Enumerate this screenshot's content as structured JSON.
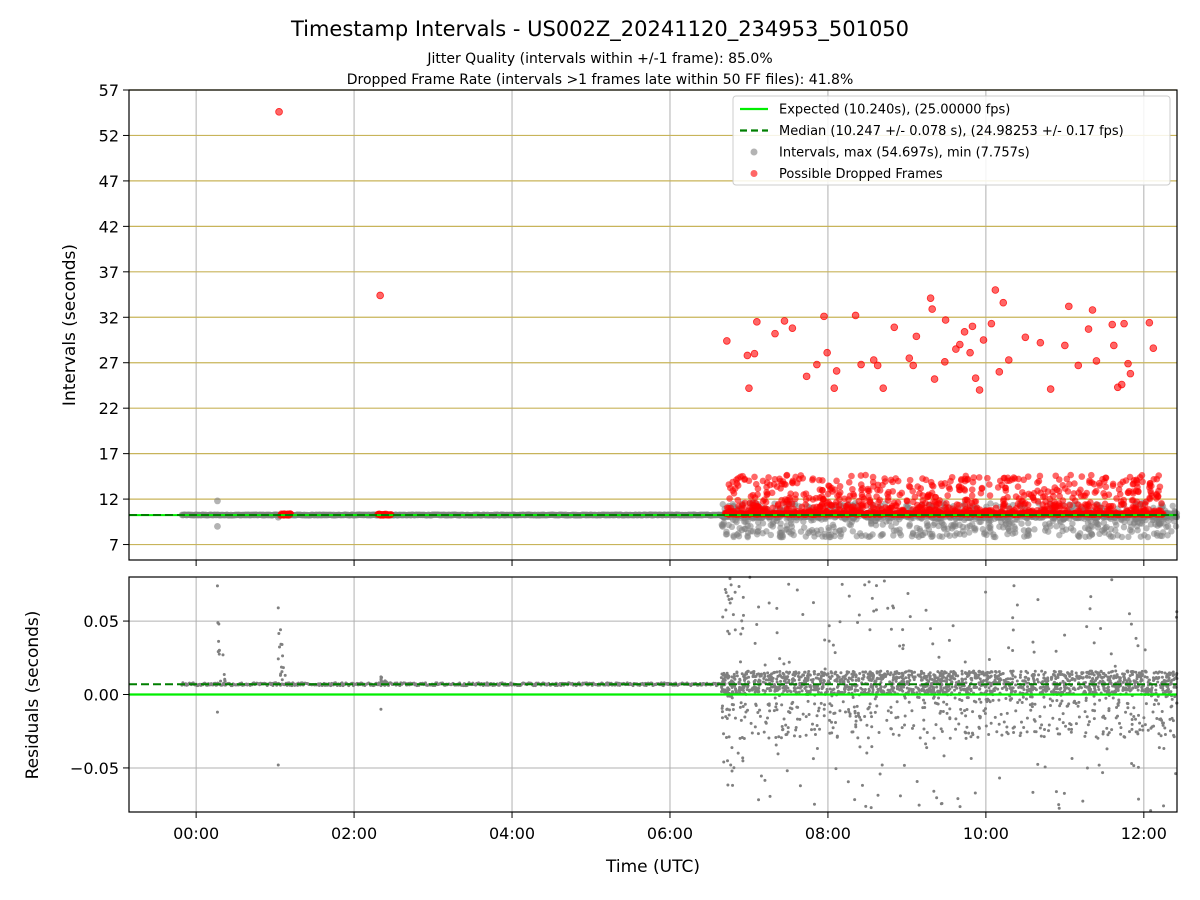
{
  "figure": {
    "title": "Timestamp Intervals - US002Z_20241120_234953_501050",
    "subtitle_1": "Jitter Quality (intervals within +/-1 frame): 85.0%",
    "subtitle_2": "Dropped Frame Rate (intervals >1 frames late within 50 FF files): 41.8%"
  },
  "colors": {
    "expected": "#00ee00",
    "median": "#007f00",
    "intervals": "#808080",
    "dropped": "#ff0000",
    "grid": "#b0b0b0",
    "frame_grid": "#c8b45a"
  },
  "chart_data": [
    {
      "name": "intervals-panel",
      "type": "scatter",
      "ylabel": "Intervals (seconds)",
      "xlim": [
        -0.85,
        12.42
      ],
      "ylim": [
        5.3,
        57
      ],
      "yticks": [
        7,
        12,
        17,
        22,
        27,
        32,
        37,
        42,
        47,
        52,
        57
      ],
      "ytick_labels": [
        "7",
        "12",
        "17",
        "22",
        "27",
        "32",
        "37",
        "42",
        "47",
        "52",
        "57"
      ],
      "xticks": [
        0,
        2,
        4,
        6,
        8,
        10,
        12
      ],
      "grid": true,
      "legend_position": "top-right",
      "legend": [
        {
          "label": "Expected (10.240s), (25.00000 fps)",
          "kind": "solid-line",
          "color_key": "expected"
        },
        {
          "label": "Median (10.247 +/- 0.078 s), (24.98253 +/- 0.17 fps)",
          "kind": "dashed-line",
          "color_key": "median"
        },
        {
          "label": "Intervals, max (54.697s), min (7.757s)",
          "kind": "marker",
          "color_key": "intervals"
        },
        {
          "label": "Possible Dropped Frames",
          "kind": "marker",
          "color_key": "dropped"
        }
      ],
      "expected_value": 10.24,
      "median_value": 10.247,
      "dropped_high_points": [
        {
          "x": 1.05,
          "y": 54.6
        },
        {
          "x": 2.33,
          "y": 34.4
        },
        {
          "x": 6.72,
          "y": 29.4
        },
        {
          "x": 6.98,
          "y": 27.8
        },
        {
          "x": 7.0,
          "y": 24.2
        },
        {
          "x": 7.07,
          "y": 28.0
        },
        {
          "x": 7.1,
          "y": 31.5
        },
        {
          "x": 7.33,
          "y": 30.2
        },
        {
          "x": 7.45,
          "y": 31.6
        },
        {
          "x": 7.55,
          "y": 30.8
        },
        {
          "x": 7.73,
          "y": 25.5
        },
        {
          "x": 7.86,
          "y": 26.8
        },
        {
          "x": 7.95,
          "y": 32.1
        },
        {
          "x": 7.99,
          "y": 28.1
        },
        {
          "x": 8.08,
          "y": 24.2
        },
        {
          "x": 8.11,
          "y": 26.1
        },
        {
          "x": 8.35,
          "y": 32.2
        },
        {
          "x": 8.42,
          "y": 26.8
        },
        {
          "x": 8.58,
          "y": 27.3
        },
        {
          "x": 8.63,
          "y": 26.7
        },
        {
          "x": 8.7,
          "y": 24.2
        },
        {
          "x": 8.84,
          "y": 30.9
        },
        {
          "x": 9.03,
          "y": 27.5
        },
        {
          "x": 9.08,
          "y": 26.7
        },
        {
          "x": 9.12,
          "y": 29.9
        },
        {
          "x": 9.3,
          "y": 34.1
        },
        {
          "x": 9.32,
          "y": 32.9
        },
        {
          "x": 9.35,
          "y": 25.2
        },
        {
          "x": 9.48,
          "y": 27.1
        },
        {
          "x": 9.49,
          "y": 31.7
        },
        {
          "x": 9.62,
          "y": 28.5
        },
        {
          "x": 9.67,
          "y": 29.0
        },
        {
          "x": 9.73,
          "y": 30.4
        },
        {
          "x": 9.8,
          "y": 28.1
        },
        {
          "x": 9.83,
          "y": 31.0
        },
        {
          "x": 9.87,
          "y": 25.3
        },
        {
          "x": 9.92,
          "y": 24.0
        },
        {
          "x": 9.97,
          "y": 29.5
        },
        {
          "x": 10.07,
          "y": 31.3
        },
        {
          "x": 10.12,
          "y": 35.0
        },
        {
          "x": 10.17,
          "y": 26.0
        },
        {
          "x": 10.22,
          "y": 33.6
        },
        {
          "x": 10.29,
          "y": 27.3
        },
        {
          "x": 10.5,
          "y": 29.8
        },
        {
          "x": 10.69,
          "y": 29.2
        },
        {
          "x": 10.82,
          "y": 24.1
        },
        {
          "x": 11.0,
          "y": 28.9
        },
        {
          "x": 11.05,
          "y": 33.2
        },
        {
          "x": 11.17,
          "y": 26.7
        },
        {
          "x": 11.3,
          "y": 30.7
        },
        {
          "x": 11.35,
          "y": 32.8
        },
        {
          "x": 11.4,
          "y": 27.2
        },
        {
          "x": 11.6,
          "y": 31.2
        },
        {
          "x": 11.62,
          "y": 28.9
        },
        {
          "x": 11.67,
          "y": 24.3
        },
        {
          "x": 11.72,
          "y": 24.6
        },
        {
          "x": 11.75,
          "y": 31.3
        },
        {
          "x": 11.8,
          "y": 26.9
        },
        {
          "x": 11.83,
          "y": 25.8
        },
        {
          "x": 12.07,
          "y": 31.4
        },
        {
          "x": 12.12,
          "y": 28.6
        }
      ],
      "dropped_low_clusters": [
        {
          "x_start": 1.07,
          "x_end": 1.2,
          "y_min": 10.2,
          "y_max": 10.4
        },
        {
          "x_start": 2.3,
          "x_end": 2.47,
          "y_min": 10.2,
          "y_max": 10.4
        },
        {
          "x_start": 6.7,
          "x_end": 12.25,
          "y_min": 10.3,
          "y_max": 14.7
        }
      ],
      "interval_clusters": [
        {
          "x_start": -0.18,
          "x_end": 6.7,
          "y_min": 10.2,
          "y_max": 10.3
        },
        {
          "x_start": 6.65,
          "x_end": 12.42,
          "y_min": 7.8,
          "y_max": 11.6
        }
      ],
      "interval_outliers": [
        {
          "x": 0.27,
          "y": 11.8
        },
        {
          "x": 0.27,
          "y": 9.0
        },
        {
          "x": 1.04,
          "y": 10.0
        }
      ]
    },
    {
      "name": "residuals-panel",
      "type": "scatter",
      "xlabel": "Time (UTC)",
      "ylabel": "Residuals (seconds)",
      "xlim": [
        -0.85,
        12.42
      ],
      "ylim": [
        -0.08,
        0.08
      ],
      "yticks": [
        -0.05,
        0.0,
        0.05
      ],
      "ytick_labels": [
        "−0.05",
        "0.00",
        "0.05"
      ],
      "xticks": [
        0,
        2,
        4,
        6,
        8,
        10,
        12
      ],
      "xtick_labels": [
        "00:00",
        "02:00",
        "04:00",
        "06:00",
        "08:00",
        "10:00",
        "12:00"
      ],
      "grid": true,
      "expected_value": 0.0,
      "median_value": 0.007,
      "residual_baseline": {
        "x_start": -0.18,
        "x_end": 6.7,
        "y": 0.007
      },
      "residual_spikes": [
        {
          "x": 0.27,
          "y_max": 0.074,
          "y_min": -0.012
        },
        {
          "x": 1.04,
          "y_max": 0.059,
          "y_min": -0.048
        },
        {
          "x": 2.34,
          "y_max": 0.012,
          "y_min": -0.01
        }
      ],
      "residual_scatter": {
        "x_start": 6.65,
        "x_end": 12.42,
        "y_min": -0.08,
        "y_max": 0.08,
        "dense_min": 0.0,
        "dense_max": 0.016
      }
    }
  ]
}
